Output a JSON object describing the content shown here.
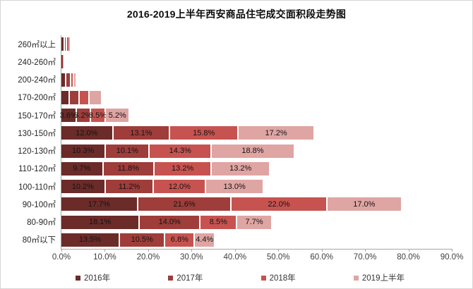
{
  "chart_data": {
    "type": "bar",
    "orientation": "horizontal",
    "title": "2016-2019上半年西安商品住宅成交面积段走势图",
    "categories": [
      "260㎡以上",
      "240-260㎡",
      "200-240㎡",
      "170-200㎡",
      "150-170㎡",
      "130-150㎡",
      "120-130㎡",
      "110-120㎡",
      "100-110㎡",
      "90-100㎡",
      "80-90㎡",
      "80㎡以下"
    ],
    "series": [
      {
        "name": "2016年",
        "color": "#6b2b29",
        "values": [
          0.8,
          0.2,
          1.2,
          2.0,
          3.6,
          12.0,
          10.3,
          9.7,
          10.2,
          17.7,
          18.1,
          13.5
        ]
      },
      {
        "name": "2017年",
        "color": "#9e3d3a",
        "values": [
          0.5,
          0.1,
          1.0,
          2.3,
          3.2,
          13.1,
          10.1,
          11.8,
          11.2,
          21.6,
          14.0,
          10.5
        ]
      },
      {
        "name": "2018年",
        "color": "#c75350",
        "values": [
          0.4,
          0.1,
          0.7,
          2.2,
          3.5,
          15.8,
          14.3,
          13.2,
          12.0,
          22.0,
          8.5,
          6.8
        ]
      },
      {
        "name": "2019上半年",
        "color": "#dfa5a3",
        "values": [
          0.3,
          0.1,
          0.4,
          2.6,
          5.2,
          17.2,
          18.8,
          13.2,
          13.0,
          17.0,
          7.7,
          4.4
        ]
      }
    ],
    "xticks": [
      "0.0%",
      "10.0%",
      "20.0%",
      "30.0%",
      "40.0%",
      "50.0%",
      "60.0%",
      "70.0%",
      "80.0%",
      "90.0%"
    ],
    "xlim": [
      0,
      90
    ],
    "label_min": 3.0,
    "label_suffix": "%",
    "grid": false,
    "legend_position": "bottom"
  }
}
